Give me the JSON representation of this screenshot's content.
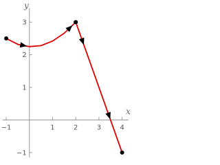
{
  "chart_data": {
    "type": "line",
    "x_label": "x",
    "y_label": "y",
    "xlim": [
      -1.15,
      4.1
    ],
    "ylim": [
      -1.15,
      3.3
    ],
    "xticks": [
      {
        "value": -1,
        "label": "−1"
      },
      1,
      2,
      3,
      4
    ],
    "yticks": [
      {
        "value": -1,
        "label": "−1"
      },
      1,
      2,
      3
    ],
    "series": [
      {
        "color": "#e00000",
        "x": [
          -1,
          -0.5,
          0,
          0.5,
          1,
          1.5,
          2
        ],
        "values": [
          2.5,
          2.32,
          2.25,
          2.28,
          2.42,
          2.66,
          3
        ]
      },
      {
        "color": "#e00000",
        "x": [
          2,
          4
        ],
        "values": [
          3,
          -1
        ]
      }
    ]
  }
}
